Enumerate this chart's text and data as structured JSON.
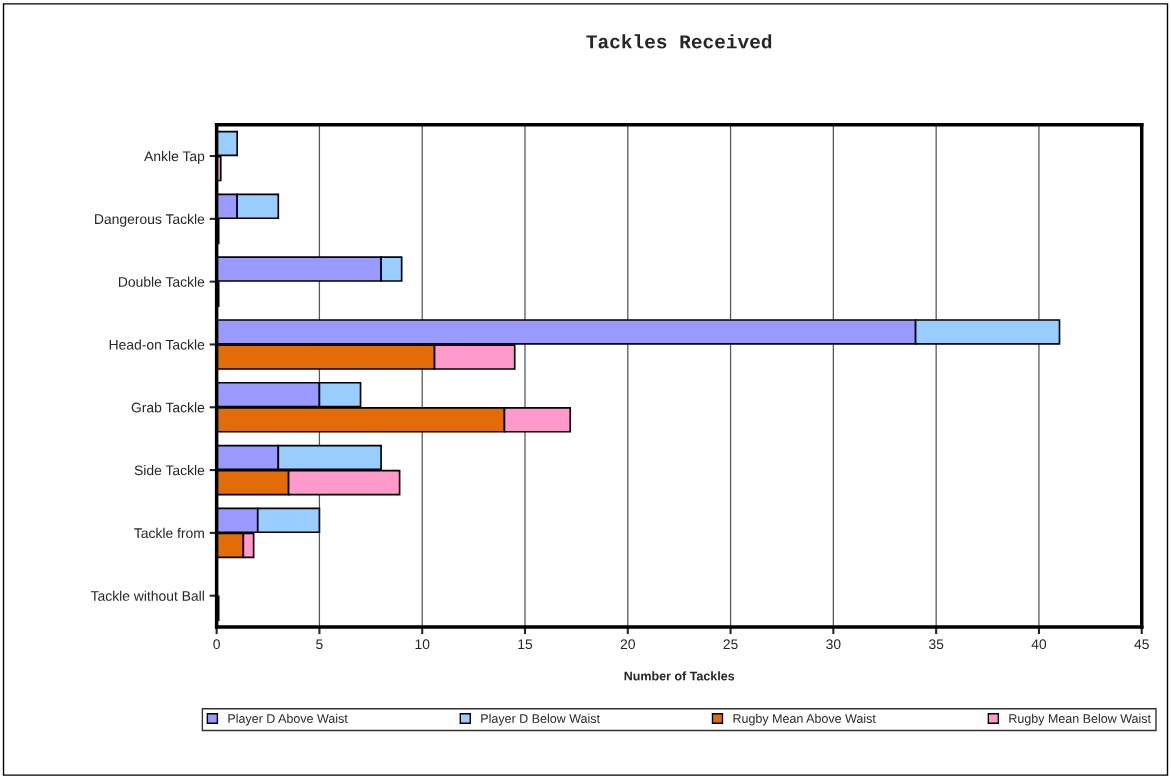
{
  "chart_data": {
    "type": "bar",
    "orientation": "horizontal",
    "title": "Tackles Received",
    "xlabel": "Number of Tackles",
    "categories": [
      "Ankle Tap",
      "Dangerous Tackle",
      "Double Tackle",
      "Head-on Tackle",
      "Grab Tackle",
      "Side Tackle",
      "Tackle from",
      "Tackle without Ball"
    ],
    "series": [
      {
        "name": "Player D Above Waist",
        "color": "#9999ff",
        "base": [
          null,
          0,
          0,
          0,
          0,
          0,
          0,
          null
        ],
        "values": [
          0,
          1,
          8,
          34,
          5,
          3,
          2,
          0
        ]
      },
      {
        "name": "Player D Below Waist",
        "color": "#99ccff",
        "base": [
          0,
          1,
          8,
          34,
          5,
          3,
          2,
          null
        ],
        "values": [
          1,
          2,
          1,
          7,
          2,
          5,
          3,
          0
        ]
      },
      {
        "name": "Rugby Mean Above Waist",
        "color": "#e36c09",
        "base": [
          null,
          null,
          null,
          0,
          0,
          0,
          0,
          null
        ],
        "values": [
          0,
          null,
          null,
          10.6,
          14,
          3.5,
          1.3,
          null
        ]
      },
      {
        "name": "Rugby Mean Below Waist",
        "color": "#ff99cc",
        "base": [
          0,
          0,
          0,
          10.6,
          14,
          3.5,
          1.3,
          0
        ],
        "values": [
          0.2,
          0.1,
          0.1,
          3.9,
          3.2,
          5.4,
          0.5,
          0.1
        ]
      }
    ],
    "xlim": [
      0,
      45
    ],
    "xticks": [
      0,
      5,
      10,
      15,
      20,
      25,
      30,
      35,
      40,
      45
    ],
    "grid": "x",
    "legend": "bottom"
  }
}
